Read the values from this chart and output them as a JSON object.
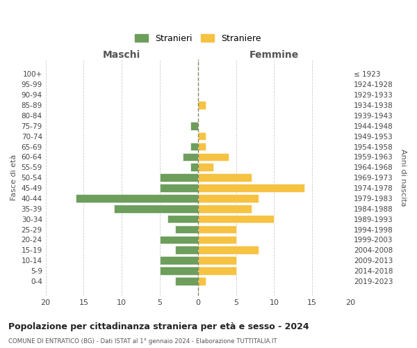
{
  "age_groups": [
    "0-4",
    "5-9",
    "10-14",
    "15-19",
    "20-24",
    "25-29",
    "30-34",
    "35-39",
    "40-44",
    "45-49",
    "50-54",
    "55-59",
    "60-64",
    "65-69",
    "70-74",
    "75-79",
    "80-84",
    "85-89",
    "90-94",
    "95-99",
    "100+"
  ],
  "birth_years": [
    "2019-2023",
    "2014-2018",
    "2009-2013",
    "2004-2008",
    "1999-2003",
    "1994-1998",
    "1989-1993",
    "1984-1988",
    "1979-1983",
    "1974-1978",
    "1969-1973",
    "1964-1968",
    "1959-1963",
    "1954-1958",
    "1949-1953",
    "1944-1948",
    "1939-1943",
    "1934-1938",
    "1929-1933",
    "1924-1928",
    "≤ 1923"
  ],
  "maschi": [
    3,
    5,
    5,
    3,
    5,
    3,
    4,
    11,
    16,
    5,
    5,
    1,
    2,
    1,
    0,
    1,
    0,
    0,
    0,
    0,
    0
  ],
  "femmine": [
    1,
    5,
    5,
    8,
    5,
    5,
    10,
    7,
    8,
    14,
    7,
    2,
    4,
    1,
    1,
    0,
    0,
    1,
    0,
    0,
    0
  ],
  "color_maschi": "#6d9e5c",
  "color_femmine": "#f5c242",
  "title": "Popolazione per cittadinanza straniera per età e sesso - 2024",
  "subtitle": "COMUNE DI ENTRATICO (BG) - Dati ISTAT al 1° gennaio 2024 - Elaborazione TUTTITALIA.IT",
  "xlabel_left": "Maschi",
  "xlabel_right": "Femmine",
  "ylabel_left": "Fasce di età",
  "ylabel_right": "Anni di nascita",
  "legend_maschi": "Stranieri",
  "legend_femmine": "Straniere",
  "xlim": 20,
  "background_color": "#ffffff",
  "grid_color": "#cccccc"
}
